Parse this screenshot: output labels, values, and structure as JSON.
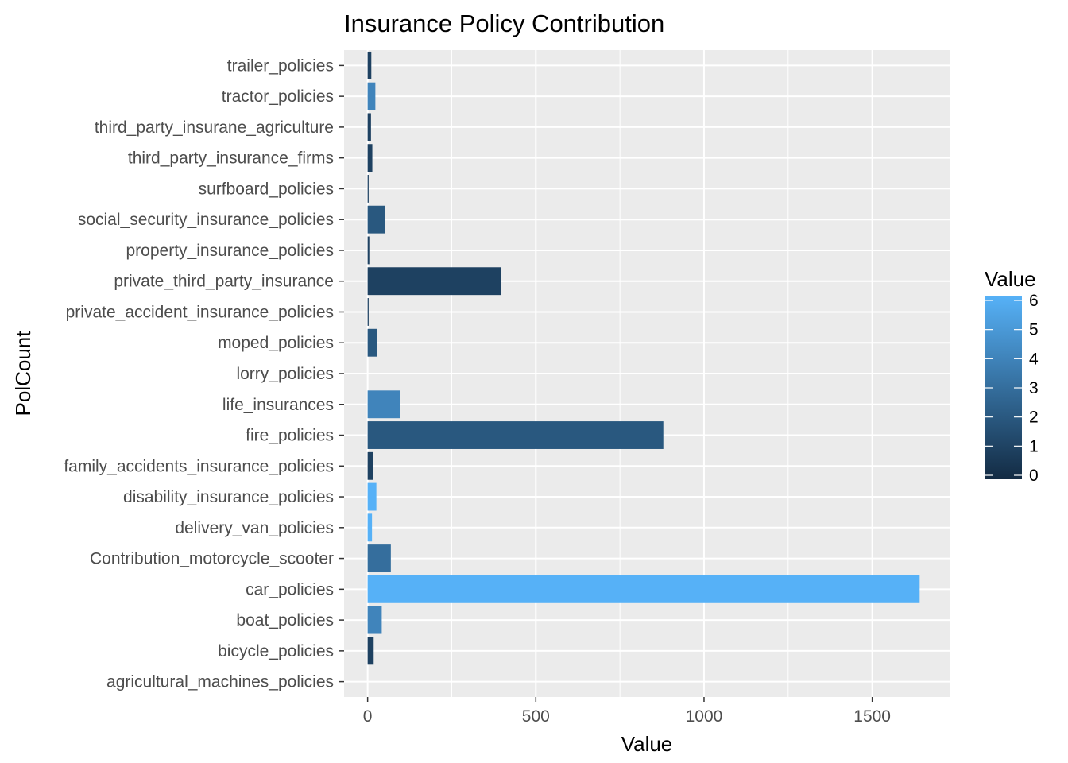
{
  "chart_data": {
    "type": "bar",
    "orientation": "horizontal",
    "title": "Insurance Policy Contribution",
    "xlabel": "Value",
    "ylabel": "PolCount",
    "xlim": [
      -70,
      1730
    ],
    "x_ticks": [
      "0",
      "500",
      "1000",
      "1500"
    ],
    "x_tick_values": [
      0,
      500,
      1000,
      1500
    ],
    "grid": true,
    "legend": {
      "title": "Value",
      "position": "right",
      "ticks": [
        "0",
        "1",
        "2",
        "3",
        "4",
        "5",
        "6"
      ],
      "low_color": "#132B43",
      "high_color": "#56B1F7"
    },
    "categories": [
      "agricultural_machines_policies",
      "bicycle_policies",
      "boat_policies",
      "car_policies",
      "Contribution_motorcycle_scooter",
      "delivery_van_policies",
      "disability_insurance_policies",
      "family_accidents_insurance_policies",
      "fire_policies",
      "life_insurances",
      "lorry_policies",
      "moped_policies",
      "private_accident_insurance_policies",
      "private_third_party_insurance",
      "property_insurance_policies",
      "social_security_insurance_policies",
      "surfboard_policies",
      "third_party_insurance_firms",
      "third_party_insurane_agriculture",
      "tractor_policies",
      "trailer_policies"
    ],
    "values": [
      0,
      18,
      42,
      1641,
      69,
      13,
      26,
      16,
      879,
      96,
      0,
      27,
      3,
      397,
      5,
      52,
      3,
      14,
      10,
      23,
      11
    ],
    "dominant_color_value": [
      0,
      1,
      4,
      6,
      3,
      6,
      6,
      1,
      2,
      4,
      0,
      2,
      1,
      1,
      1,
      2,
      1,
      1,
      1,
      4,
      1
    ]
  }
}
